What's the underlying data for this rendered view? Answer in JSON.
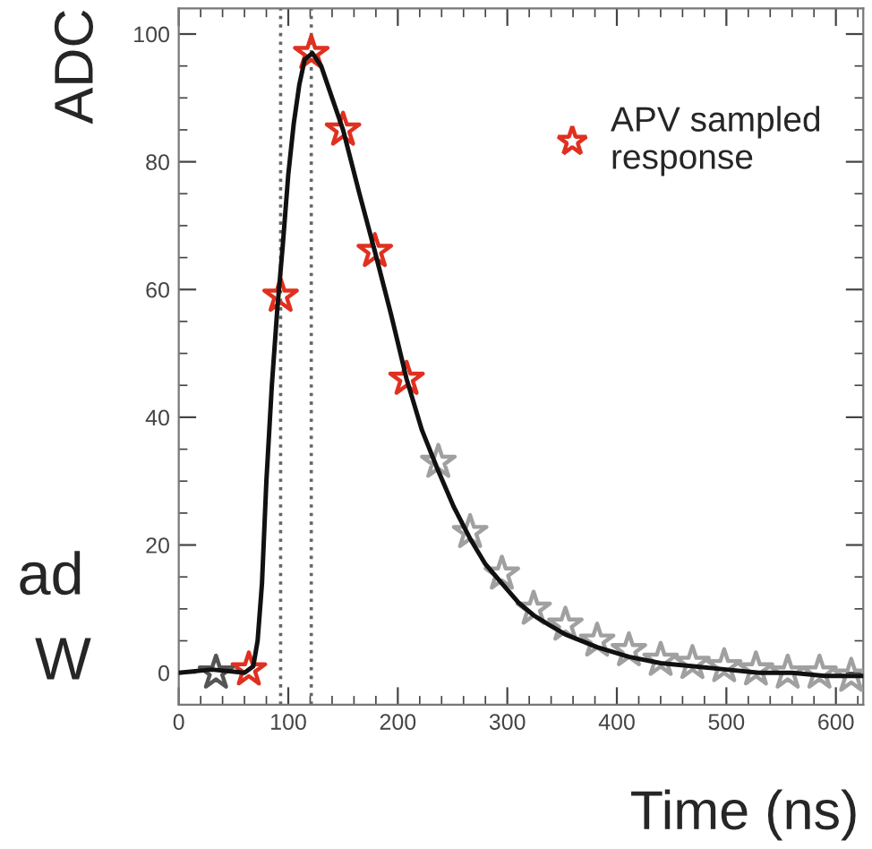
{
  "chart_data": {
    "type": "scatter",
    "xlabel": "Time (ns)",
    "ylabel": "ADC",
    "xlim": [
      0,
      625
    ],
    "ylim": [
      -5,
      104
    ],
    "xticks": [
      0,
      100,
      200,
      300,
      400,
      500,
      600
    ],
    "yticks": [
      0,
      20,
      40,
      60,
      80,
      100
    ],
    "grid": false,
    "legend": "top right",
    "series": [
      {
        "type": "line",
        "color": "#111111",
        "x": [
          0,
          30,
          60,
          68,
          72,
          76,
          80,
          85,
          90,
          95,
          100,
          105,
          110,
          115,
          122,
          130,
          140,
          150,
          165,
          179,
          194,
          208,
          222,
          236,
          251,
          266,
          280,
          295,
          310,
          324,
          338,
          353,
          382,
          411,
          440,
          470,
          500,
          530,
          560,
          590,
          625
        ],
        "values": [
          0,
          0.5,
          0,
          1,
          5,
          14,
          30,
          45,
          57,
          67,
          78,
          86,
          92,
          96,
          97,
          95,
          90,
          85,
          75,
          66,
          56,
          46,
          38,
          32,
          26,
          21,
          17,
          14,
          11,
          9,
          7.5,
          6,
          4,
          2.5,
          1.5,
          1,
          0.5,
          0,
          0,
          -0.5,
          -0.5
        ]
      },
      {
        "name": "APV sampled response",
        "marker": "star",
        "color": "#e03020",
        "x": [
          64,
          93,
          121,
          150,
          179,
          208
        ],
        "values": [
          0.5,
          59,
          97,
          85,
          66,
          46
        ]
      },
      {
        "marker": "star",
        "colors": [
          "#555555",
          "#a0a0a0",
          "#a0a0a0",
          "#a0a0a0",
          "#a0a0a0",
          "#a0a0a0",
          "#a0a0a0",
          "#a0a0a0",
          "#a0a0a0",
          "#a0a0a0",
          "#a0a0a0",
          "#a0a0a0",
          "#a0a0a0",
          "#a0a0a0",
          "#a0a0a0"
        ],
        "x": [
          34,
          237,
          266,
          295,
          324,
          353,
          382,
          411,
          440,
          469,
          498,
          527,
          556,
          585,
          614
        ],
        "values": [
          0,
          33,
          22,
          15.5,
          10,
          7.5,
          5,
          3.5,
          2,
          1.5,
          1,
          0.5,
          0,
          0,
          -0.5
        ]
      }
    ],
    "ref_lines": [
      {
        "axis": "x",
        "value": 93,
        "color": "#666666",
        "line_style": "dotted"
      },
      {
        "axis": "x",
        "value": 121,
        "color": "#666666",
        "line_style": "dotted"
      }
    ],
    "annotations": [
      "ad",
      "W"
    ]
  }
}
